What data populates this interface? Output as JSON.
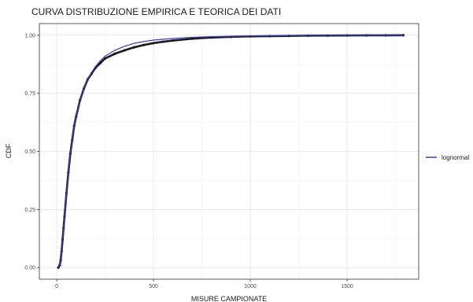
{
  "chart_data": {
    "type": "line",
    "title": "CURVA DISTRIBUZIONE EMPIRICA E TEORICA DEI DATI",
    "xlabel": "MISURE CAMPIONATE",
    "ylabel": "CDF",
    "xlim": [
      -90,
      1870
    ],
    "ylim": [
      -0.05,
      1.05
    ],
    "x_ticks": [
      {
        "value": 0,
        "label": "0"
      },
      {
        "value": 500,
        "label": "500"
      },
      {
        "value": 1000,
        "label": "1000"
      },
      {
        "value": 1500,
        "label": "1500"
      }
    ],
    "y_ticks": [
      {
        "value": 0,
        "label": "0.00"
      },
      {
        "value": 0.25,
        "label": "0.25"
      },
      {
        "value": 0.5,
        "label": "0.50"
      },
      {
        "value": 0.75,
        "label": "0.75"
      },
      {
        "value": 1.0,
        "label": "1.00"
      }
    ],
    "grid": true,
    "legend_position": "right",
    "series": [
      {
        "name": "lognormal",
        "kind": "theoretical",
        "color": "#3b3bbf",
        "x": [
          8,
          15,
          20,
          25,
          30,
          35,
          40,
          50,
          60,
          70,
          80,
          90,
          100,
          120,
          140,
          160,
          180,
          200,
          225,
          250,
          300,
          350,
          400,
          450,
          500,
          600,
          700,
          800,
          1000,
          1200,
          1400,
          1790
        ],
        "y": [
          0.0,
          0.01,
          0.03,
          0.07,
          0.12,
          0.17,
          0.22,
          0.32,
          0.41,
          0.49,
          0.55,
          0.61,
          0.65,
          0.72,
          0.77,
          0.81,
          0.84,
          0.865,
          0.89,
          0.91,
          0.935,
          0.952,
          0.965,
          0.973,
          0.979,
          0.986,
          0.991,
          0.994,
          0.997,
          0.998,
          0.999,
          1.0
        ]
      },
      {
        "kind": "empirical",
        "color": "#1a1a1a",
        "x": [
          8,
          15,
          20,
          25,
          30,
          35,
          40,
          50,
          60,
          70,
          80,
          90,
          100,
          120,
          140,
          160,
          180,
          200,
          225,
          250,
          300,
          350,
          400,
          450,
          500,
          550,
          600,
          700,
          800,
          900,
          1000,
          1100,
          1200,
          1300,
          1400,
          1500,
          1600,
          1700,
          1790
        ],
        "y": [
          0.0,
          0.01,
          0.03,
          0.07,
          0.12,
          0.17,
          0.22,
          0.32,
          0.41,
          0.49,
          0.55,
          0.61,
          0.65,
          0.72,
          0.77,
          0.81,
          0.835,
          0.86,
          0.88,
          0.9,
          0.92,
          0.935,
          0.948,
          0.958,
          0.966,
          0.972,
          0.977,
          0.985,
          0.99,
          0.993,
          0.995,
          0.996,
          0.997,
          0.998,
          0.9985,
          0.999,
          0.9993,
          0.9996,
          1.0
        ]
      }
    ]
  }
}
